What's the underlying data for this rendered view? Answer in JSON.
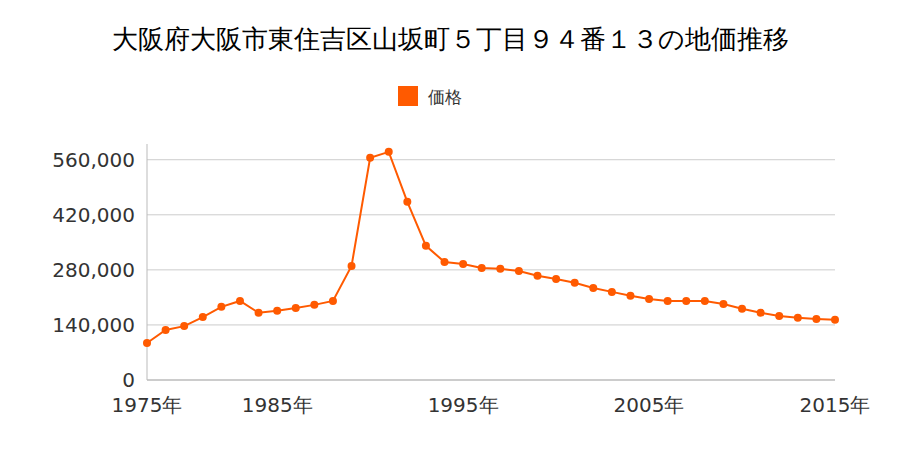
{
  "chart_data": {
    "type": "line",
    "title": "大阪府大阪市東住吉区山坂町５丁目９４番１３の地価推移",
    "categories": [
      "1975年",
      null,
      null,
      null,
      null,
      null,
      null,
      "1985年",
      null,
      null,
      null,
      null,
      null,
      null,
      null,
      null,
      null,
      "1995年",
      null,
      null,
      null,
      null,
      null,
      null,
      null,
      null,
      null,
      "2005年",
      null,
      null,
      null,
      null,
      null,
      null,
      null,
      null,
      null,
      "2015年"
    ],
    "series": [
      {
        "name": "価格",
        "color": "#ff5a00",
        "marker": "circle",
        "values": [
          94000,
          127000,
          137000,
          160000,
          186000,
          201000,
          171000,
          176000,
          183000,
          191000,
          201000,
          290000,
          565000,
          580000,
          453000,
          341000,
          300000,
          295000,
          285000,
          283000,
          277000,
          265000,
          257000,
          247000,
          234000,
          224000,
          214000,
          206000,
          201000,
          201000,
          201000,
          193000,
          181000,
          171000,
          163000,
          158000,
          155000,
          153000
        ]
      }
    ],
    "ylim": [
      0,
      600000
    ],
    "yticks": [
      0,
      {
        "value": 140000,
        "label": "140,000"
      },
      {
        "value": 280000,
        "label": "280,000"
      },
      {
        "value": 420000,
        "label": "420,000"
      },
      {
        "value": 560000,
        "label": "560,000"
      }
    ],
    "grid": true,
    "legend": "top"
  }
}
